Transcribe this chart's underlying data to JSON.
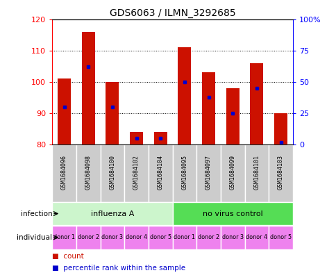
{
  "title": "GDS6063 / ILMN_3292685",
  "samples": [
    "GSM1684096",
    "GSM1684098",
    "GSM1684100",
    "GSM1684102",
    "GSM1684104",
    "GSM1684095",
    "GSM1684097",
    "GSM1684099",
    "GSM1684101",
    "GSM1684103"
  ],
  "count_values": [
    101,
    116,
    100,
    84,
    84,
    111,
    103,
    98,
    106,
    90
  ],
  "percentile_values": [
    30,
    62,
    30,
    5,
    5,
    50,
    38,
    25,
    45,
    2
  ],
  "ylim_left": [
    80,
    120
  ],
  "ylim_right": [
    0,
    100
  ],
  "yticks_left": [
    80,
    90,
    100,
    110,
    120
  ],
  "yticks_right": [
    0,
    25,
    50,
    75,
    100
  ],
  "infection_groups": [
    {
      "label": "influenza A",
      "start": 0,
      "end": 5,
      "color": "#ccf5cc"
    },
    {
      "label": "no virus control",
      "start": 5,
      "end": 10,
      "color": "#55dd55"
    }
  ],
  "individual_labels": [
    "donor 1",
    "donor 2",
    "donor 3",
    "donor 4",
    "donor 5",
    "donor 1",
    "donor 2",
    "donor 3",
    "donor 4",
    "donor 5"
  ],
  "individual_color": "#ee82ee",
  "sample_box_color": "#cccccc",
  "bar_color": "#cc1100",
  "dot_color": "#0000cc",
  "bar_width": 0.55,
  "base_value": 80,
  "legend_count_label": "count",
  "legend_pct_label": "percentile rank within the sample"
}
